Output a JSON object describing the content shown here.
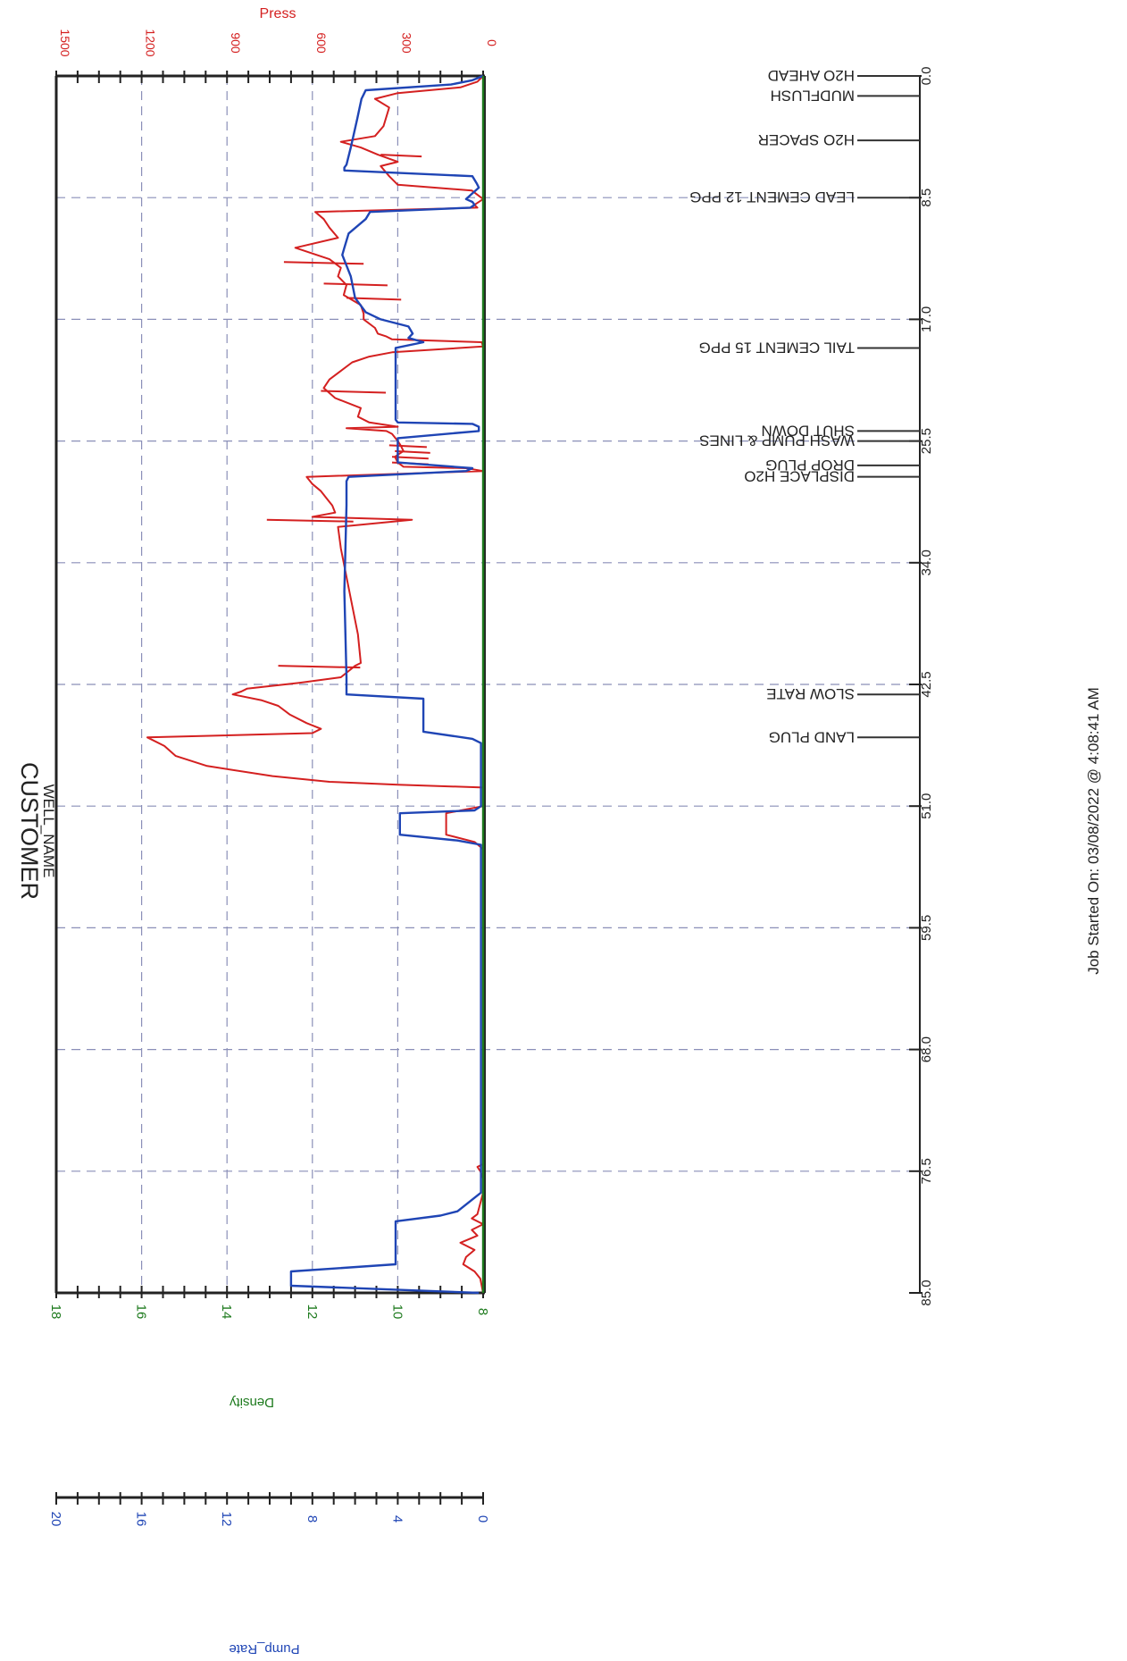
{
  "chart_data": {
    "type": "line",
    "title": "CUSTOMER",
    "subtitle": "WELL_NAME",
    "footer": "Job Started On: 03/08/2022 @ 4:08:41 AM",
    "orientation": "rotated-90",
    "time_axis": {
      "range": [
        0,
        85
      ],
      "ticks": [
        "0.0",
        "8.5",
        "17.0",
        "25.5",
        "34.0",
        "42.5",
        "51.0",
        "59.5",
        "68.0",
        "76.5",
        "85.0"
      ],
      "grid": true
    },
    "value_axes": [
      {
        "label": "Press",
        "color": "#d42020",
        "range": [
          0,
          1500
        ],
        "ticks": [
          "0",
          "300",
          "600",
          "900",
          "1200",
          "1500"
        ],
        "grid": true
      },
      {
        "label": "Density",
        "color": "#1d7a1d",
        "range": [
          8,
          18
        ],
        "ticks": [
          "8",
          "10",
          "12",
          "14",
          "16",
          "18"
        ]
      },
      {
        "label": "Pump_Rate",
        "color": "#1f45b5",
        "range": [
          0,
          20
        ],
        "ticks": [
          "0",
          "4",
          "8",
          "12",
          "16",
          "20"
        ]
      }
    ],
    "events": [
      {
        "t": 0.0,
        "label": "H2O AHEAD"
      },
      {
        "t": 1.4,
        "label": "MUDFLUSH"
      },
      {
        "t": 4.5,
        "label": "H2O SPACER"
      },
      {
        "t": 8.5,
        "label": "LEAD CEMENT 12 PPG"
      },
      {
        "t": 19.0,
        "label": "TAIL CEMENT 15 PPG"
      },
      {
        "t": 24.8,
        "label": "SHUT DOWN"
      },
      {
        "t": 25.5,
        "label": "WASH PUMP & LINES"
      },
      {
        "t": 27.2,
        "label": "DROP PLUG"
      },
      {
        "t": 28.0,
        "label": "DISPLACE H2O"
      },
      {
        "t": 43.2,
        "label": "SLOW RATE"
      },
      {
        "t": 46.2,
        "label": "LAND PLUG"
      }
    ],
    "series": [
      {
        "name": "Press",
        "color": "#d42020",
        "axis": 0,
        "x": [
          0,
          0.4,
          0.8,
          1.2,
          1.6,
          2.2,
          3.5,
          4.2,
          4.6,
          5.0,
          5.5,
          6.0,
          6.3,
          7.0,
          7.6,
          8.0,
          8.6,
          9.0,
          9.2,
          9.5,
          10.0,
          10.6,
          11.3,
          12.0,
          12.8,
          13.4,
          14.0,
          14.6,
          15.3,
          16.0,
          16.6,
          17.0,
          17.6,
          18.0,
          18.2,
          18.4,
          18.6,
          18.9,
          19.3,
          19.6,
          20.0,
          20.6,
          21.2,
          21.8,
          22.5,
          23.2,
          23.8,
          24.2,
          24.5,
          24.6,
          24.8,
          25.0,
          25.5,
          25.8,
          26.2,
          26.6,
          27.0,
          27.3,
          27.4,
          27.6,
          28.0,
          28.5,
          29.0,
          29.5,
          30.0,
          30.5,
          30.8,
          31.0,
          31.5,
          33.0,
          36.0,
          39.0,
          41.0,
          41.2,
          42.0,
          42.4,
          42.8,
          43.0,
          43.2,
          43.6,
          44.0,
          44.6,
          45.2,
          45.6,
          45.9,
          46.2,
          46.8,
          47.5,
          48.2,
          48.9,
          49.3,
          49.5,
          49.7,
          50.0,
          50.5,
          51.0,
          51.5,
          52.0,
          52.5,
          53.0,
          53.5,
          54.0,
          56.0,
          60.0,
          64.0,
          68.0,
          72.0,
          76.0,
          76.2,
          76.5,
          77.0,
          78.0,
          79.5,
          79.8,
          80.2,
          80.6,
          81.0,
          81.5,
          82.0,
          82.5,
          83.0,
          83.5,
          84.0,
          84.5,
          85.0
        ],
        "y": [
          0,
          20,
          80,
          300,
          380,
          330,
          350,
          380,
          500,
          430,
          370,
          300,
          360,
          330,
          300,
          40,
          0,
          30,
          20,
          590,
          560,
          540,
          510,
          660,
          540,
          500,
          510,
          480,
          490,
          430,
          420,
          420,
          380,
          370,
          340,
          320,
          5,
          0,
          320,
          400,
          460,
          500,
          540,
          560,
          520,
          430,
          440,
          400,
          300,
          480,
          340,
          320,
          300,
          290,
          280,
          310,
          300,
          280,
          60,
          0,
          620,
          600,
          570,
          550,
          530,
          520,
          600,
          250,
          510,
          500,
          470,
          440,
          430,
          450,
          500,
          650,
          830,
          850,
          880,
          780,
          720,
          680,
          620,
          570,
          600,
          1180,
          1120,
          1080,
          970,
          740,
          540,
          300,
          0,
          0,
          0,
          0,
          130,
          130,
          130,
          130,
          30,
          0,
          0,
          0,
          0,
          0,
          0,
          0,
          20,
          10,
          0,
          0,
          20,
          40,
          0,
          40,
          20,
          80,
          30,
          60,
          70,
          30,
          10,
          5,
          0
        ],
        "spikes": [
          {
            "t": 5.5,
            "y": 360
          },
          {
            "t": 13.0,
            "y": 700
          },
          {
            "t": 14.5,
            "y": 560
          },
          {
            "t": 15.5,
            "y": 480
          },
          {
            "t": 22.0,
            "y": 570
          },
          {
            "t": 25.8,
            "y": 330
          },
          {
            "t": 26.2,
            "y": 310
          },
          {
            "t": 26.6,
            "y": 320
          },
          {
            "t": 27.0,
            "y": 320
          },
          {
            "t": 31.0,
            "y": 760
          },
          {
            "t": 41.2,
            "y": 720
          }
        ]
      },
      {
        "name": "Pump_Rate",
        "color": "#1f45b5",
        "axis": 2,
        "x": [
          0,
          0.3,
          0.6,
          1.0,
          1.3,
          1.6,
          3.0,
          5.0,
          6.2,
          6.4,
          6.6,
          7.0,
          7.5,
          7.8,
          8.2,
          8.6,
          8.8,
          9.0,
          9.2,
          9.5,
          10.0,
          11.0,
          12.0,
          12.5,
          14.0,
          15.5,
          16.5,
          17.0,
          17.5,
          18.0,
          18.3,
          18.6,
          19.0,
          19.5,
          24.0,
          24.2,
          24.3,
          24.5,
          24.8,
          25.3,
          25.8,
          26.0,
          26.2,
          26.4,
          26.6,
          26.8,
          27.0,
          27.4,
          27.6,
          28.0,
          28.3,
          28.6,
          29.0,
          30.0,
          36.0,
          42.0,
          43.2,
          43.5,
          44.5,
          45.8,
          46.3,
          46.6,
          49.0,
          49.5,
          50.2,
          51.0,
          51.3,
          51.5,
          52.0,
          53.0,
          53.4,
          53.7,
          54.0,
          60.0,
          70.0,
          78.0,
          79.3,
          79.6,
          80.0,
          82.0,
          82.5,
          83.0,
          83.5,
          84.2,
          84.5,
          85.0
        ],
        "y": [
          0,
          0.5,
          1.5,
          5.5,
          5.6,
          5.7,
          5.9,
          6.2,
          6.4,
          6.5,
          6.5,
          0.5,
          0.3,
          0.2,
          0.5,
          0.8,
          0.5,
          0.4,
          0.6,
          5.3,
          5.5,
          6.3,
          6.5,
          6.6,
          6.2,
          6.0,
          5.5,
          4.8,
          3.5,
          3.3,
          3.5,
          2.8,
          4.1,
          4.1,
          4.1,
          4.0,
          0.5,
          0.2,
          0.2,
          4.0,
          4.0,
          4.0,
          4.0,
          4.0,
          4.0,
          4.0,
          4.0,
          0.5,
          0.8,
          6.3,
          6.4,
          6.4,
          6.4,
          6.4,
          6.5,
          6.4,
          6.4,
          2.8,
          2.8,
          2.8,
          0.5,
          0.1,
          0.1,
          0.1,
          0.1,
          0.1,
          0.4,
          3.9,
          3.9,
          3.9,
          1.2,
          0.1,
          0.1,
          0.1,
          0.1,
          0.1,
          1.2,
          2.0,
          4.1,
          4.1,
          4.1,
          4.1,
          9.0,
          9.0,
          9.0,
          0.2
        ]
      },
      {
        "name": "Density",
        "color": "#1d7a1d",
        "axis": 1,
        "x": [
          0,
          85
        ],
        "y": [
          8,
          8
        ]
      }
    ]
  }
}
